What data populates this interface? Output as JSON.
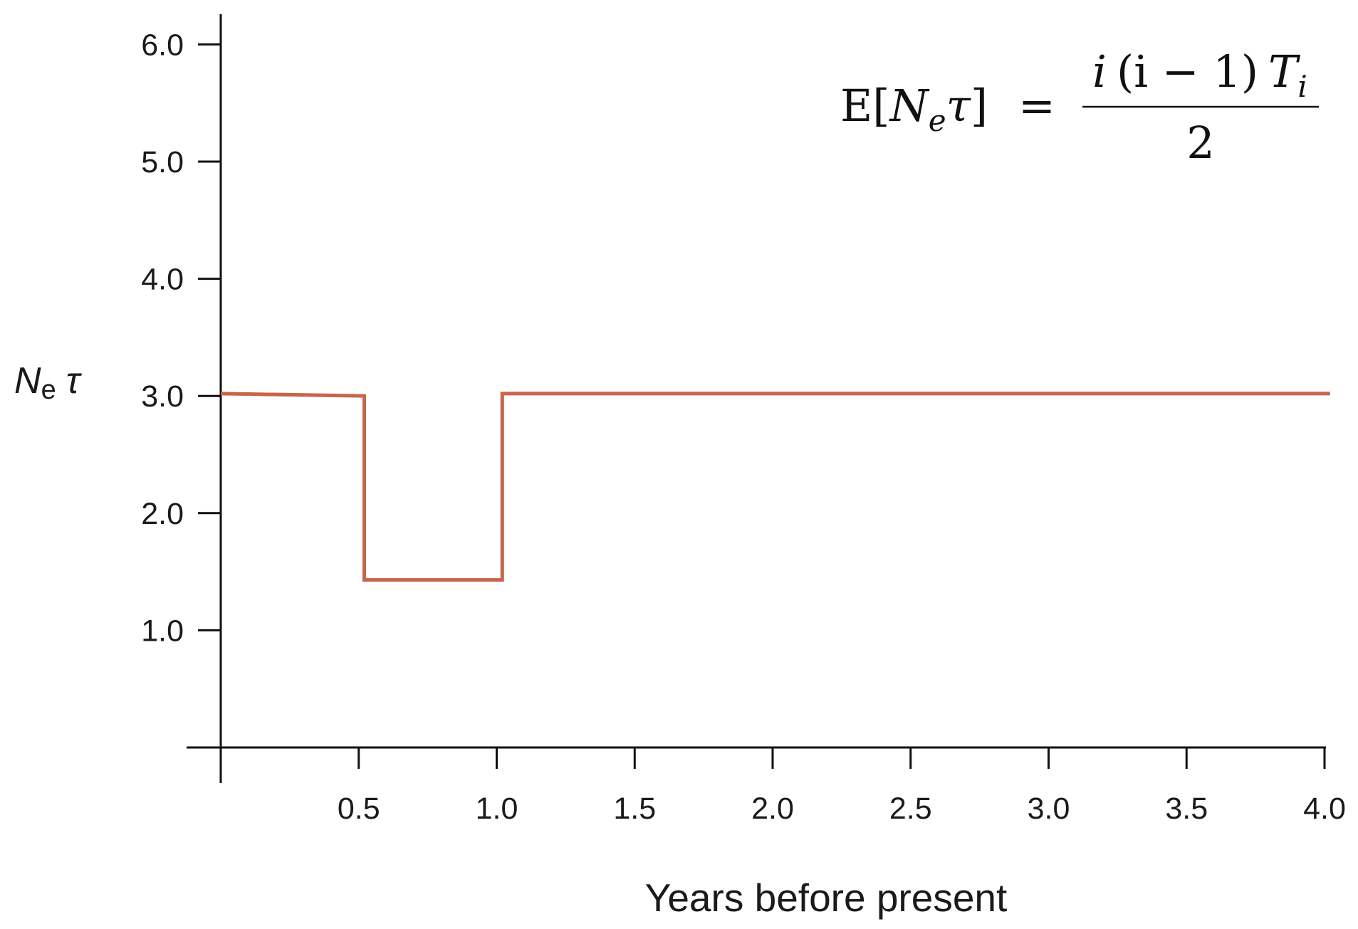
{
  "chart_data": {
    "type": "line",
    "step": true,
    "title": "",
    "xlabel": "Years before present",
    "ylabel": {
      "main": "N",
      "sub": "e",
      "tail": "τ"
    },
    "xlim": [
      0,
      4.0
    ],
    "ylim": [
      0,
      6.0
    ],
    "x_ticks": [
      0,
      0.5,
      1.0,
      1.5,
      2.0,
      2.5,
      3.0,
      3.5,
      4.0
    ],
    "x_tick_labels": [
      "",
      "0.5",
      "1.0",
      "1.5",
      "2.0",
      "2.5",
      "3.0",
      "3.5",
      "4.0"
    ],
    "y_ticks": [
      1.0,
      2.0,
      3.0,
      4.0,
      5.0,
      6.0
    ],
    "y_tick_labels": [
      "1.0",
      "2.0",
      "3.0",
      "4.0",
      "5.0",
      "6.0"
    ],
    "grid": false,
    "series": [
      {
        "color": "#c8644a",
        "points": [
          {
            "x": 0.0,
            "y": 3.02
          },
          {
            "x": 0.52,
            "y": 3.0
          },
          {
            "x": 0.52,
            "y": 1.43
          },
          {
            "x": 1.02,
            "y": 1.43
          },
          {
            "x": 1.02,
            "y": 3.02
          },
          {
            "x": 4.02,
            "y": 3.02
          }
        ]
      }
    ],
    "annotation": {
      "lhs_E": "E[",
      "lhs_N": "N",
      "lhs_e": "e",
      "lhs_tau": "τ",
      "lhs_close": "]",
      "equals": "=",
      "numerator_a": "i",
      "numerator_b": "(i − 1)",
      "numerator_T": "T",
      "numerator_Tsub": "i",
      "denominator": "2"
    }
  }
}
